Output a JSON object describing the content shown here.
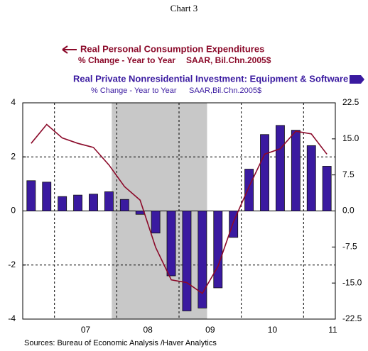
{
  "chart_data": {
    "type": "bar_line",
    "title": "Chart 3",
    "source": "Sources:  Bureau of Economic Analysis /Haver Analytics",
    "x": [
      2006.625,
      2006.875,
      2007.125,
      2007.375,
      2007.625,
      2007.875,
      2008.125,
      2008.375,
      2008.625,
      2008.875,
      2009.125,
      2009.375,
      2009.625,
      2009.875,
      2010.125,
      2010.375,
      2010.625,
      2010.875,
      2011.125,
      2011.375
    ],
    "xlim": [
      2006.49,
      2011.51
    ],
    "xticks": [
      {
        "value": 2007.5,
        "label": "07"
      },
      {
        "value": 2008.5,
        "label": "08"
      },
      {
        "value": 2009.5,
        "label": "09"
      },
      {
        "value": 2010.5,
        "label": "10"
      },
      {
        "value": 2011.47,
        "label": "11"
      }
    ],
    "xgrid": [
      2007,
      2008,
      2009,
      2010,
      2011
    ],
    "recession": [
      2007.92,
      2009.45
    ],
    "ylim": [
      -4,
      4
    ],
    "yticks": [
      -4,
      -2,
      0,
      2,
      4
    ],
    "y2lim": [
      -22.5,
      22.5
    ],
    "y2ticks": [
      -22.5,
      {
        "value": -15,
        "label": "-15.0"
      },
      -7.5,
      {
        "value": 0,
        "label": "0.0"
      },
      7.5,
      {
        "value": 15,
        "label": "15.0"
      },
      22.5
    ],
    "grid": true,
    "series": [
      {
        "name": "Real Personal Consumption Expenditures",
        "units": [
          "% Change - Year to Year",
          "SAAR, Bil.Chn.2005$"
        ],
        "type": "line",
        "color": "#8b0a2a",
        "values": [
          2.5,
          3.2,
          2.7,
          2.5,
          2.35,
          1.7,
          0.9,
          0.4,
          -1.35,
          -2.55,
          -2.65,
          -3.05,
          -2.05,
          -0.4,
          0.9,
          2.1,
          2.3,
          2.95,
          2.85,
          2.1
        ]
      },
      {
        "name": "Real Private Nonresidential Investment: Equipment & Software",
        "units": [
          "% Change - Year to Year",
          "SAAR,Bil.Chn.2005$"
        ],
        "type": "bar",
        "axis": "y2",
        "color": "#3a1aa0",
        "values": [
          6.3,
          6.0,
          3.0,
          3.3,
          3.5,
          4.0,
          2.4,
          -0.7,
          -4.6,
          -13.5,
          -20.8,
          -20.2,
          -16.0,
          -5.5,
          8.7,
          15.9,
          17.8,
          16.8,
          13.6,
          9.3
        ]
      }
    ]
  }
}
